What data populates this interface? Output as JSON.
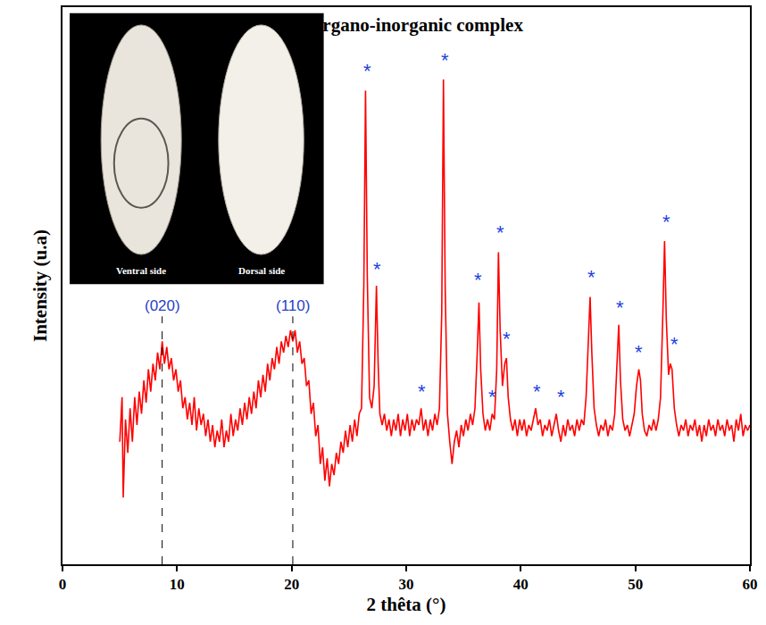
{
  "chart_data": {
    "type": "line",
    "title": "Organo-inorganic complex",
    "x_label": "2 thêta (°)",
    "y_label": "Intensity (u.a)",
    "xlim": [
      0,
      60
    ],
    "xticks": [
      0,
      10,
      20,
      30,
      40,
      50,
      60
    ],
    "ylim": [
      0,
      100
    ],
    "yticks": [],
    "tick_labels": "x",
    "grid": false,
    "series": [
      {
        "color": "#ff0000",
        "x": [
          5.0,
          5.2,
          5.3,
          5.5,
          5.7,
          5.9,
          6.1,
          6.3,
          6.5,
          6.7,
          6.9,
          7.1,
          7.3,
          7.5,
          7.7,
          7.9,
          8.1,
          8.3,
          8.5,
          8.7,
          8.9,
          9.1,
          9.3,
          9.5,
          9.7,
          9.9,
          10.1,
          10.3,
          10.5,
          10.7,
          10.9,
          11.1,
          11.3,
          11.5,
          11.7,
          11.9,
          12.1,
          12.3,
          12.5,
          12.7,
          12.9,
          13.1,
          13.3,
          13.5,
          13.7,
          13.9,
          14.1,
          14.3,
          14.5,
          14.7,
          14.9,
          15.1,
          15.3,
          15.5,
          15.7,
          15.9,
          16.1,
          16.3,
          16.5,
          16.7,
          16.9,
          17.1,
          17.3,
          17.5,
          17.7,
          17.9,
          18.1,
          18.3,
          18.5,
          18.7,
          18.9,
          19.1,
          19.3,
          19.5,
          19.7,
          19.9,
          20.1,
          20.3,
          20.5,
          20.7,
          20.9,
          21.1,
          21.3,
          21.5,
          21.7,
          21.9,
          22.1,
          22.3,
          22.5,
          22.7,
          22.9,
          23.1,
          23.3,
          23.5,
          23.7,
          23.9,
          24.1,
          24.3,
          24.5,
          24.7,
          24.9,
          25.1,
          25.3,
          25.5,
          25.7,
          25.9,
          26.1,
          26.3,
          26.45,
          26.6,
          26.8,
          27.0,
          27.2,
          27.4,
          27.55,
          27.7,
          27.9,
          28.1,
          28.3,
          28.5,
          28.7,
          28.9,
          29.1,
          29.3,
          29.5,
          29.7,
          29.9,
          30.1,
          30.3,
          30.5,
          30.7,
          30.9,
          31.1,
          31.3,
          31.5,
          31.7,
          31.9,
          32.1,
          32.3,
          32.5,
          32.7,
          32.9,
          33.1,
          33.25,
          33.4,
          33.6,
          33.8,
          34.0,
          34.2,
          34.4,
          34.6,
          34.8,
          35.0,
          35.2,
          35.4,
          35.6,
          35.8,
          36.0,
          36.2,
          36.35,
          36.5,
          36.7,
          36.9,
          37.1,
          37.3,
          37.5,
          37.7,
          37.9,
          38.05,
          38.2,
          38.4,
          38.6,
          38.75,
          38.9,
          39.1,
          39.3,
          39.5,
          39.7,
          39.9,
          40.1,
          40.3,
          40.5,
          40.7,
          40.9,
          41.1,
          41.3,
          41.5,
          41.7,
          41.9,
          42.1,
          42.3,
          42.5,
          42.7,
          42.9,
          43.1,
          43.3,
          43.5,
          43.7,
          43.9,
          44.1,
          44.3,
          44.5,
          44.7,
          44.9,
          45.1,
          45.3,
          45.5,
          45.7,
          45.9,
          46.05,
          46.2,
          46.4,
          46.6,
          46.8,
          47.0,
          47.2,
          47.4,
          47.6,
          47.8,
          48.0,
          48.2,
          48.4,
          48.55,
          48.7,
          48.9,
          49.1,
          49.3,
          49.5,
          49.7,
          49.9,
          50.1,
          50.3,
          50.45,
          50.6,
          50.8,
          51.0,
          51.2,
          51.4,
          51.6,
          51.8,
          52.0,
          52.2,
          52.4,
          52.55,
          52.7,
          52.9,
          53.05,
          53.2,
          53.4,
          53.6,
          53.8,
          54.0,
          54.2,
          54.4,
          54.6,
          54.8,
          55.0,
          55.2,
          55.4,
          55.6,
          55.8,
          56.0,
          56.2,
          56.4,
          56.6,
          56.8,
          57.0,
          57.2,
          57.4,
          57.6,
          57.8,
          58.0,
          58.2,
          58.4,
          58.6,
          58.8,
          59.0,
          59.2,
          59.4,
          59.6,
          59.8,
          60.0
        ],
        "values": [
          22,
          30,
          12,
          26,
          20,
          28,
          22,
          30,
          25,
          31,
          27,
          33,
          29,
          35,
          31,
          36,
          33,
          38,
          35,
          40,
          36,
          39,
          35,
          37,
          33,
          35,
          31,
          33,
          28,
          30,
          26,
          29,
          25,
          30,
          24,
          28,
          25,
          27,
          23,
          26,
          22,
          25,
          21,
          24,
          22,
          26,
          21,
          24,
          22,
          27,
          23,
          26,
          24,
          28,
          25,
          29,
          26,
          30,
          27,
          31,
          28,
          33,
          30,
          34,
          31,
          36,
          33,
          37,
          35,
          39,
          36,
          40,
          38,
          41,
          39,
          42,
          40,
          42,
          38,
          40,
          36,
          37,
          32,
          33,
          27,
          29,
          23,
          25,
          18,
          21,
          15,
          19,
          14,
          18,
          16,
          20,
          18,
          22,
          20,
          24,
          21,
          25,
          22,
          26,
          23,
          27,
          28,
          50,
          85,
          52,
          30,
          28,
          32,
          50,
          36,
          27,
          25,
          27,
          24,
          26,
          23,
          26,
          24,
          27,
          23,
          26,
          24,
          27,
          23,
          26,
          24,
          26,
          25,
          28,
          24,
          26,
          23,
          26,
          24,
          27,
          25,
          28,
          45,
          87,
          50,
          27,
          22,
          18,
          22,
          24,
          21,
          25,
          23,
          26,
          24,
          27,
          25,
          28,
          38,
          47,
          35,
          27,
          24,
          26,
          24,
          27,
          26,
          35,
          56,
          42,
          32,
          36,
          37,
          30,
          26,
          24,
          26,
          23,
          26,
          24,
          26,
          23,
          25,
          24,
          26,
          28,
          25,
          26,
          23,
          25,
          24,
          26,
          23,
          25,
          27,
          24,
          22,
          25,
          23,
          26,
          24,
          25,
          23,
          26,
          24,
          26,
          25,
          30,
          42,
          48,
          38,
          28,
          25,
          23,
          25,
          24,
          26,
          23,
          25,
          24,
          27,
          36,
          43,
          33,
          26,
          24,
          25,
          23,
          25,
          27,
          32,
          35,
          33,
          27,
          24,
          23,
          25,
          24,
          26,
          24,
          26,
          30,
          45,
          58,
          44,
          34,
          36,
          35,
          28,
          25,
          23,
          25,
          24,
          26,
          23,
          25,
          24,
          26,
          23,
          25,
          22,
          25,
          23,
          26,
          24,
          25,
          23,
          26,
          24,
          25,
          23,
          26,
          24,
          25,
          22,
          26,
          24,
          27,
          23,
          25,
          24,
          25
        ]
      }
    ],
    "annotations": [
      {
        "text": "(020)",
        "x": 8.7,
        "y": 44.5,
        "color": "#2a3fc8",
        "line_style": "dashed"
      },
      {
        "text": "(110)",
        "x": 20.1,
        "y": 44.5,
        "color": "#2a3fc8",
        "line_style": "dashed"
      },
      {
        "text": "*",
        "x": 26.6,
        "y": 88.5,
        "color": "#1f3fe0"
      },
      {
        "text": "*",
        "x": 27.5,
        "y": 53,
        "color": "#1f3fe0"
      },
      {
        "text": "*",
        "x": 31.4,
        "y": 31,
        "color": "#1f3fe0"
      },
      {
        "text": "*",
        "x": 33.4,
        "y": 90.5,
        "color": "#1f3fe0"
      },
      {
        "text": "*",
        "x": 36.3,
        "y": 51,
        "color": "#1f3fe0"
      },
      {
        "text": "*",
        "x": 37.5,
        "y": 30,
        "color": "#1f3fe0"
      },
      {
        "text": "*",
        "x": 38.2,
        "y": 59.5,
        "color": "#1f3fe0"
      },
      {
        "text": "*",
        "x": 38.8,
        "y": 40.5,
        "color": "#1f3fe0"
      },
      {
        "text": "*",
        "x": 41.4,
        "y": 31,
        "color": "#1f3fe0"
      },
      {
        "text": "*",
        "x": 43.5,
        "y": 30,
        "color": "#1f3fe0"
      },
      {
        "text": "*",
        "x": 46.2,
        "y": 51.5,
        "color": "#1f3fe0"
      },
      {
        "text": "*",
        "x": 48.7,
        "y": 46,
        "color": "#1f3fe0"
      },
      {
        "text": "*",
        "x": 50.3,
        "y": 38,
        "color": "#1f3fe0"
      },
      {
        "text": "*",
        "x": 52.7,
        "y": 61.5,
        "color": "#1f3fe0"
      },
      {
        "text": "*",
        "x": 53.4,
        "y": 39.5,
        "color": "#1f3fe0"
      }
    ],
    "inset": {
      "labels": [
        "Ventral side",
        "Dorsal side"
      ]
    }
  }
}
